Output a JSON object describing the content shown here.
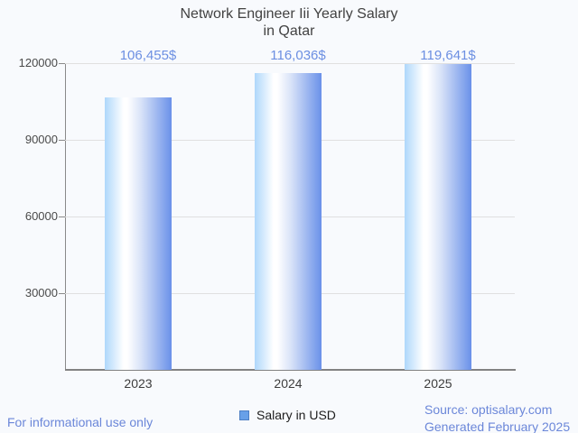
{
  "title": {
    "line1": "Network Engineer Iii Yearly Salary",
    "line2": "in Qatar"
  },
  "chart_data": {
    "type": "bar",
    "title": "Network Engineer Iii Yearly Salary in Qatar",
    "categories": [
      "2023",
      "2024",
      "2025"
    ],
    "series": [
      {
        "name": "Salary in USD",
        "values": [
          106455,
          116036,
          119641
        ]
      }
    ],
    "value_labels": [
      "106,455$",
      "116,036$",
      "119,641$"
    ],
    "xlabel": "",
    "ylabel": "",
    "ylim": [
      0,
      120000
    ],
    "yticks": [
      30000,
      60000,
      90000,
      120000
    ],
    "ytick_labels": [
      "30000",
      "60000",
      "90000",
      "120000"
    ],
    "grid": true,
    "legend_position": "bottom",
    "bar_gradient": [
      "#aed7fb",
      "#ffffff",
      "#6a91e9"
    ]
  },
  "legend": {
    "label": "Salary in USD",
    "swatch_fill": "#68a0e8",
    "swatch_border": "#4d7fc4"
  },
  "footer": {
    "note": "For informational use only",
    "source_line1": "Source: optisalary.com",
    "source_line2": "Generated February 2025"
  },
  "colors": {
    "title": "#424242",
    "value_label": "#6c8fe2",
    "footer_text": "#6b87d9",
    "grid": "#e0e0e0",
    "axis_line": "#8a8a8a",
    "background": "#f8fafd"
  }
}
